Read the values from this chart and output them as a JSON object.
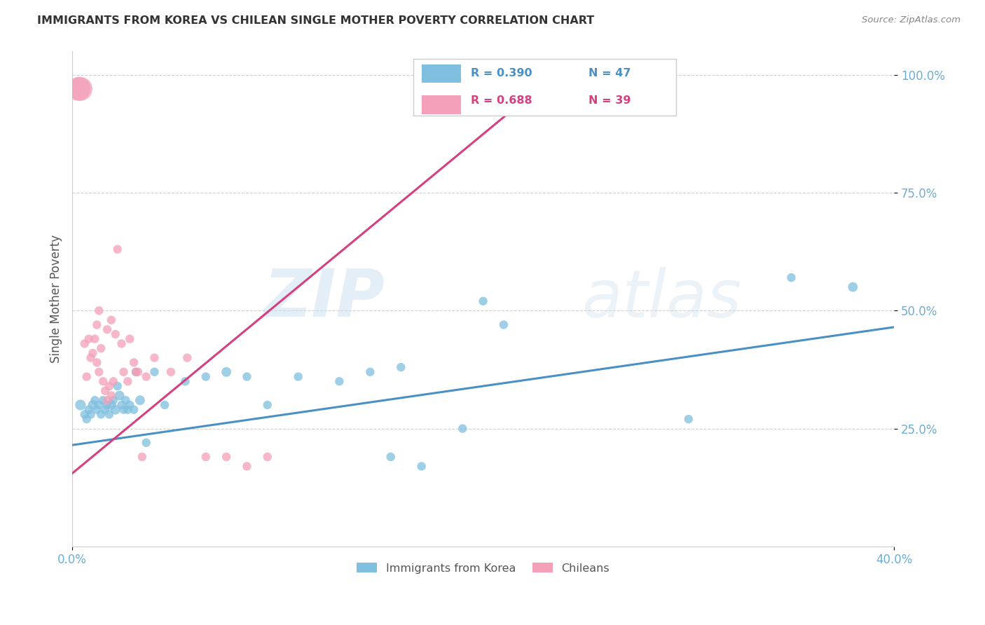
{
  "title": "IMMIGRANTS FROM KOREA VS CHILEAN SINGLE MOTHER POVERTY CORRELATION CHART",
  "source": "Source: ZipAtlas.com",
  "ylabel": "Single Mother Poverty",
  "ytick_labels": [
    "100.0%",
    "75.0%",
    "50.0%",
    "25.0%"
  ],
  "ytick_values": [
    1.0,
    0.75,
    0.5,
    0.25
  ],
  "xlim": [
    0.0,
    0.4
  ],
  "ylim": [
    0.0,
    1.05
  ],
  "legend_r_blue": "R = 0.390",
  "legend_n_blue": "N = 47",
  "legend_r_pink": "R = 0.688",
  "legend_n_pink": "N = 39",
  "label_blue": "Immigrants from Korea",
  "label_pink": "Chileans",
  "color_blue": "#7fbfdf",
  "color_pink": "#f4a0b8",
  "color_blue_line": "#4a90c4",
  "color_pink_line": "#d44080",
  "color_axis_text": "#6baed6",
  "color_title": "#333333",
  "color_source": "#888888",
  "watermark_color": "#c8dff0",
  "blue_scatter_x": [
    0.004,
    0.006,
    0.007,
    0.008,
    0.009,
    0.01,
    0.011,
    0.012,
    0.013,
    0.014,
    0.015,
    0.016,
    0.017,
    0.018,
    0.019,
    0.02,
    0.021,
    0.022,
    0.023,
    0.024,
    0.025,
    0.026,
    0.027,
    0.028,
    0.03,
    0.031,
    0.033,
    0.036,
    0.04,
    0.045,
    0.055,
    0.065,
    0.075,
    0.085,
    0.095,
    0.11,
    0.13,
    0.145,
    0.16,
    0.2,
    0.21,
    0.3,
    0.35,
    0.155,
    0.17,
    0.38,
    0.19
  ],
  "blue_scatter_y": [
    0.3,
    0.28,
    0.27,
    0.29,
    0.28,
    0.3,
    0.31,
    0.29,
    0.3,
    0.28,
    0.31,
    0.29,
    0.3,
    0.28,
    0.3,
    0.31,
    0.29,
    0.34,
    0.32,
    0.3,
    0.29,
    0.31,
    0.29,
    0.3,
    0.29,
    0.37,
    0.31,
    0.22,
    0.37,
    0.3,
    0.35,
    0.36,
    0.37,
    0.36,
    0.3,
    0.36,
    0.35,
    0.37,
    0.38,
    0.52,
    0.47,
    0.27,
    0.57,
    0.19,
    0.17,
    0.55,
    0.25
  ],
  "blue_scatter_size": [
    120,
    80,
    80,
    80,
    80,
    100,
    80,
    80,
    80,
    80,
    80,
    80,
    80,
    80,
    100,
    80,
    100,
    80,
    100,
    80,
    80,
    80,
    80,
    80,
    80,
    80,
    100,
    80,
    80,
    80,
    80,
    80,
    100,
    80,
    80,
    80,
    80,
    80,
    80,
    80,
    80,
    80,
    80,
    80,
    80,
    100,
    80
  ],
  "pink_scatter_x": [
    0.003,
    0.004,
    0.006,
    0.007,
    0.008,
    0.009,
    0.01,
    0.011,
    0.012,
    0.013,
    0.014,
    0.015,
    0.016,
    0.017,
    0.018,
    0.019,
    0.02,
    0.022,
    0.025,
    0.027,
    0.03,
    0.032,
    0.036,
    0.04,
    0.048,
    0.056,
    0.065,
    0.075,
    0.085,
    0.095,
    0.012,
    0.013,
    0.017,
    0.019,
    0.021,
    0.024,
    0.028,
    0.031,
    0.034
  ],
  "pink_scatter_y": [
    0.97,
    0.97,
    0.43,
    0.36,
    0.44,
    0.4,
    0.41,
    0.44,
    0.39,
    0.37,
    0.42,
    0.35,
    0.33,
    0.31,
    0.34,
    0.32,
    0.35,
    0.63,
    0.37,
    0.35,
    0.39,
    0.37,
    0.36,
    0.4,
    0.37,
    0.4,
    0.19,
    0.19,
    0.17,
    0.19,
    0.47,
    0.5,
    0.46,
    0.48,
    0.45,
    0.43,
    0.44,
    0.37,
    0.19
  ],
  "pink_scatter_size": [
    600,
    600,
    80,
    80,
    80,
    80,
    80,
    80,
    80,
    80,
    80,
    80,
    80,
    80,
    80,
    80,
    80,
    80,
    80,
    80,
    80,
    80,
    80,
    80,
    80,
    80,
    80,
    80,
    80,
    80,
    80,
    80,
    80,
    80,
    80,
    80,
    80,
    80,
    80
  ],
  "blue_line_x": [
    0.0,
    0.4
  ],
  "blue_line_y": [
    0.215,
    0.465
  ],
  "pink_line_x": [
    0.0,
    0.235
  ],
  "pink_line_y": [
    0.155,
    1.0
  ]
}
